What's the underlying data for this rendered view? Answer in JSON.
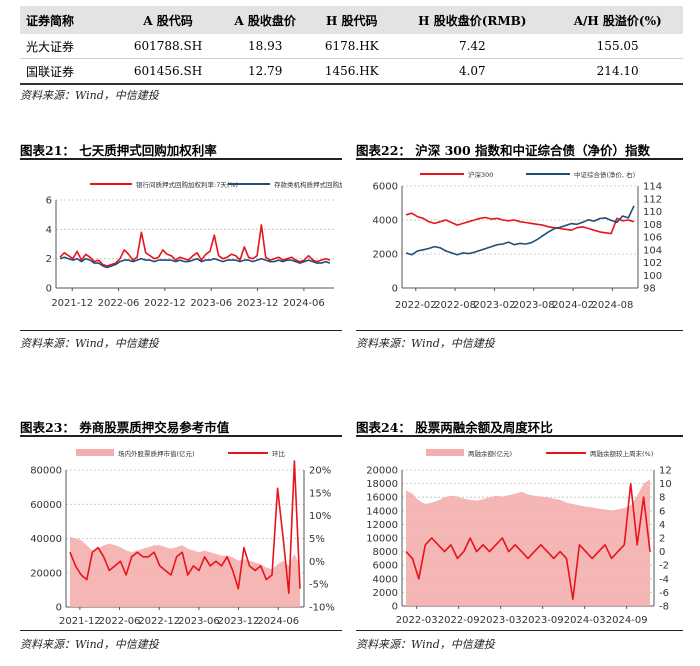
{
  "table": {
    "headers": [
      "证券简称",
      "A 股代码",
      "A 股收盘价",
      "H 股代码",
      "H 股收盘价(RMB)",
      "A/H 股溢价(%)"
    ],
    "rows": [
      [
        "光大证券",
        "601788.SH",
        "18.93",
        "6178.HK",
        "7.42",
        "155.05"
      ],
      [
        "国联证券",
        "601456.SH",
        "12.79",
        "1456.HK",
        "4.07",
        "214.10"
      ]
    ]
  },
  "sources": {
    "s1": "资料来源：Wind，中信建投",
    "s2": "资料来源：Wind，中信建投",
    "s3": "资料来源：Wind，中信建投",
    "s4": "资料来源：Wind，中信建投",
    "s5": "资料来源：Wind，中信建投"
  },
  "colors": {
    "red": "#e8141c",
    "navy": "#1f4e79",
    "pink": "#f4aeae",
    "grid": "#bdbdbd"
  },
  "chart_data": [
    {
      "id": "c21",
      "type": "line",
      "title": "图表21：  七天质押式回购加权利率",
      "legend": [
        "银行间质押式回购加权利率:7天(%)",
        "存款类机构质押式回购加权利率:7天(%)"
      ],
      "x_ticks": [
        "2021-12",
        "2022-06",
        "2022-12",
        "2023-06",
        "2023-12",
        "2024-06"
      ],
      "y_ticks": [
        "0",
        "2",
        "4",
        "6"
      ],
      "ylim": [
        0,
        6
      ],
      "grid": true,
      "series": [
        {
          "name": "银行间质押式回购加权利率:7天(%)",
          "color": "red",
          "base": 2.1,
          "values": [
            2.1,
            2.4,
            2.2,
            2.0,
            2.5,
            1.9,
            2.3,
            2.1,
            1.8,
            1.9,
            1.6,
            1.5,
            1.6,
            1.7,
            2.0,
            2.6,
            2.3,
            1.9,
            2.1,
            3.8,
            2.4,
            2.2,
            2.0,
            2.1,
            2.6,
            2.3,
            2.2,
            1.9,
            2.1,
            2.0,
            1.9,
            2.2,
            2.4,
            1.9,
            2.3,
            2.5,
            3.6,
            2.2,
            2.0,
            2.1,
            2.3,
            2.2,
            1.9,
            2.8,
            2.1,
            2.0,
            2.2,
            4.3,
            2.1,
            1.9,
            2.0,
            2.1,
            1.9,
            2.0,
            2.1,
            1.9,
            1.8,
            1.9,
            2.2,
            1.9,
            1.8,
            1.9,
            2.0,
            1.9
          ]
        },
        {
          "name": "存款类机构质押式回购加权利率:7天(%)",
          "color": "navy",
          "values": [
            2.0,
            2.1,
            2.0,
            1.9,
            2.0,
            1.8,
            2.0,
            1.9,
            1.7,
            1.7,
            1.5,
            1.4,
            1.5,
            1.6,
            1.8,
            1.9,
            1.9,
            1.8,
            1.9,
            2.0,
            1.9,
            1.9,
            1.8,
            1.9,
            1.9,
            1.9,
            1.9,
            1.8,
            1.9,
            1.8,
            1.8,
            1.9,
            2.0,
            1.8,
            1.9,
            1.9,
            2.0,
            1.9,
            1.8,
            1.9,
            1.9,
            1.9,
            1.8,
            1.9,
            1.9,
            1.8,
            1.9,
            2.0,
            1.9,
            1.8,
            1.8,
            1.9,
            1.8,
            1.9,
            1.9,
            1.8,
            1.7,
            1.8,
            1.9,
            1.8,
            1.7,
            1.7,
            1.8,
            1.7
          ]
        }
      ]
    },
    {
      "id": "c22",
      "type": "line",
      "title": "图表22：  沪深 300 指数和中证综合债（净价）指数",
      "legend": [
        "沪深300",
        "中证综合债(净价, 右)"
      ],
      "x_ticks": [
        "2022-02",
        "2022-08",
        "2023-02",
        "2023-08",
        "2024-02",
        "2024-08"
      ],
      "y_ticks": [
        "0",
        "2000",
        "4000",
        "6000"
      ],
      "y2_ticks": [
        "98",
        "100",
        "102",
        "104",
        "106",
        "108",
        "110",
        "112",
        "114"
      ],
      "ylim": [
        0,
        6000
      ],
      "y2lim": [
        98,
        114
      ],
      "grid": true,
      "series": [
        {
          "name": "沪深300",
          "color": "red",
          "values": [
            4300,
            4400,
            4200,
            4100,
            3900,
            3800,
            3900,
            4000,
            3850,
            3700,
            3800,
            3900,
            4000,
            4100,
            4150,
            4050,
            4100,
            4000,
            3950,
            4000,
            3900,
            3850,
            3800,
            3750,
            3700,
            3600,
            3550,
            3500,
            3450,
            3400,
            3550,
            3600,
            3500,
            3400,
            3300,
            3250,
            3200,
            4100,
            3950,
            4000,
            3900
          ]
        },
        {
          "name": "中证综合债(净价, 右)",
          "color": "navy",
          "values": [
            103.5,
            103.2,
            103.8,
            104.0,
            104.2,
            104.5,
            104.3,
            103.8,
            103.5,
            103.2,
            103.5,
            103.4,
            103.6,
            103.9,
            104.2,
            104.5,
            104.8,
            104.9,
            105.2,
            104.8,
            105.0,
            104.9,
            105.1,
            105.6,
            106.2,
            106.8,
            107.3,
            107.5,
            107.8,
            108.1,
            108.0,
            108.3,
            108.7,
            108.5,
            108.9,
            109.0,
            108.6,
            108.3,
            109.3,
            109.0,
            110.9
          ]
        }
      ]
    },
    {
      "id": "c23",
      "type": "area",
      "title": "图表23：  券商股票质押交易参考市值",
      "legend": [
        "场内外股票质押市值(亿元)",
        "环比"
      ],
      "x_ticks": [
        "2021-12",
        "2022-06",
        "2022-12",
        "2023-06",
        "2023-12",
        "2024-06"
      ],
      "y_ticks": [
        "0",
        "20000",
        "40000",
        "60000",
        "80000"
      ],
      "y2_ticks": [
        "-10%",
        "-5%",
        "0%",
        "5%",
        "10%",
        "15%",
        "20%"
      ],
      "ylim": [
        0,
        80000
      ],
      "y2lim": [
        -10,
        20
      ],
      "grid": true,
      "series": [
        {
          "name": "场内外股票质押市值(亿元)",
          "color": "pink",
          "values": [
            41000,
            40000,
            39000,
            36000,
            33000,
            34000,
            36000,
            37000,
            36000,
            35000,
            33000,
            32000,
            33000,
            34000,
            35000,
            36000,
            36000,
            35000,
            34000,
            35000,
            36000,
            34000,
            33000,
            32000,
            33000,
            32000,
            31000,
            30000,
            30000,
            29000,
            27000,
            28000,
            27000,
            26000,
            25000,
            23000,
            22000,
            25000,
            27000,
            24000,
            31000,
            24000
          ]
        },
        {
          "name": "环比",
          "color": "red",
          "values": [
            2,
            -1,
            -3,
            -4,
            2,
            3,
            1,
            -2,
            -1,
            0,
            -3,
            1,
            2,
            1,
            1,
            2,
            -1,
            -2,
            -3,
            1,
            2,
            -3,
            -1,
            -2,
            1,
            -1,
            0,
            -1,
            1,
            -2,
            -6,
            3,
            -1,
            -2,
            -1,
            -4,
            -3,
            16,
            5,
            -7,
            22,
            -6
          ]
        }
      ]
    },
    {
      "id": "c24",
      "type": "area",
      "title": "图表24：  股票两融余额及周度环比",
      "legend": [
        "两融余额(亿元)",
        "两融余额较上周末(%)"
      ],
      "x_ticks": [
        "2022-03",
        "2022-09",
        "2023-03",
        "2023-09",
        "2024-03",
        "2024-09"
      ],
      "y_ticks": [
        "0",
        "2000",
        "4000",
        "6000",
        "8000",
        "10000",
        "12000",
        "14000",
        "16000",
        "18000",
        "20000"
      ],
      "y2_ticks": [
        "-8",
        "-6",
        "-4",
        "-2",
        "0",
        "2",
        "4",
        "6",
        "8",
        "10",
        "12"
      ],
      "ylim": [
        0,
        20000
      ],
      "y2lim": [
        -8,
        12
      ],
      "grid": true,
      "series": [
        {
          "name": "两融余额(亿元)",
          "color": "pink",
          "values": [
            17000,
            16500,
            15500,
            15000,
            15200,
            15500,
            16000,
            16200,
            16100,
            15800,
            15600,
            15500,
            15700,
            16000,
            16200,
            16100,
            16300,
            16500,
            16800,
            16400,
            16200,
            16100,
            16000,
            15800,
            15600,
            15200,
            15000,
            14800,
            14600,
            14500,
            14300,
            14200,
            14000,
            14200,
            14400,
            14800,
            16200,
            18000,
            18600
          ]
        },
        {
          "name": "两融余额较上周末(%)",
          "color": "red",
          "values": [
            0,
            -1,
            -4,
            1,
            2,
            1,
            0,
            1,
            -1,
            0,
            2,
            0,
            1,
            0,
            1,
            2,
            0,
            1,
            0,
            -1,
            0,
            1,
            0,
            -1,
            0,
            -1,
            -7,
            1,
            0,
            -1,
            0,
            1,
            -1,
            0,
            1,
            10,
            1,
            8,
            0
          ]
        }
      ]
    }
  ]
}
